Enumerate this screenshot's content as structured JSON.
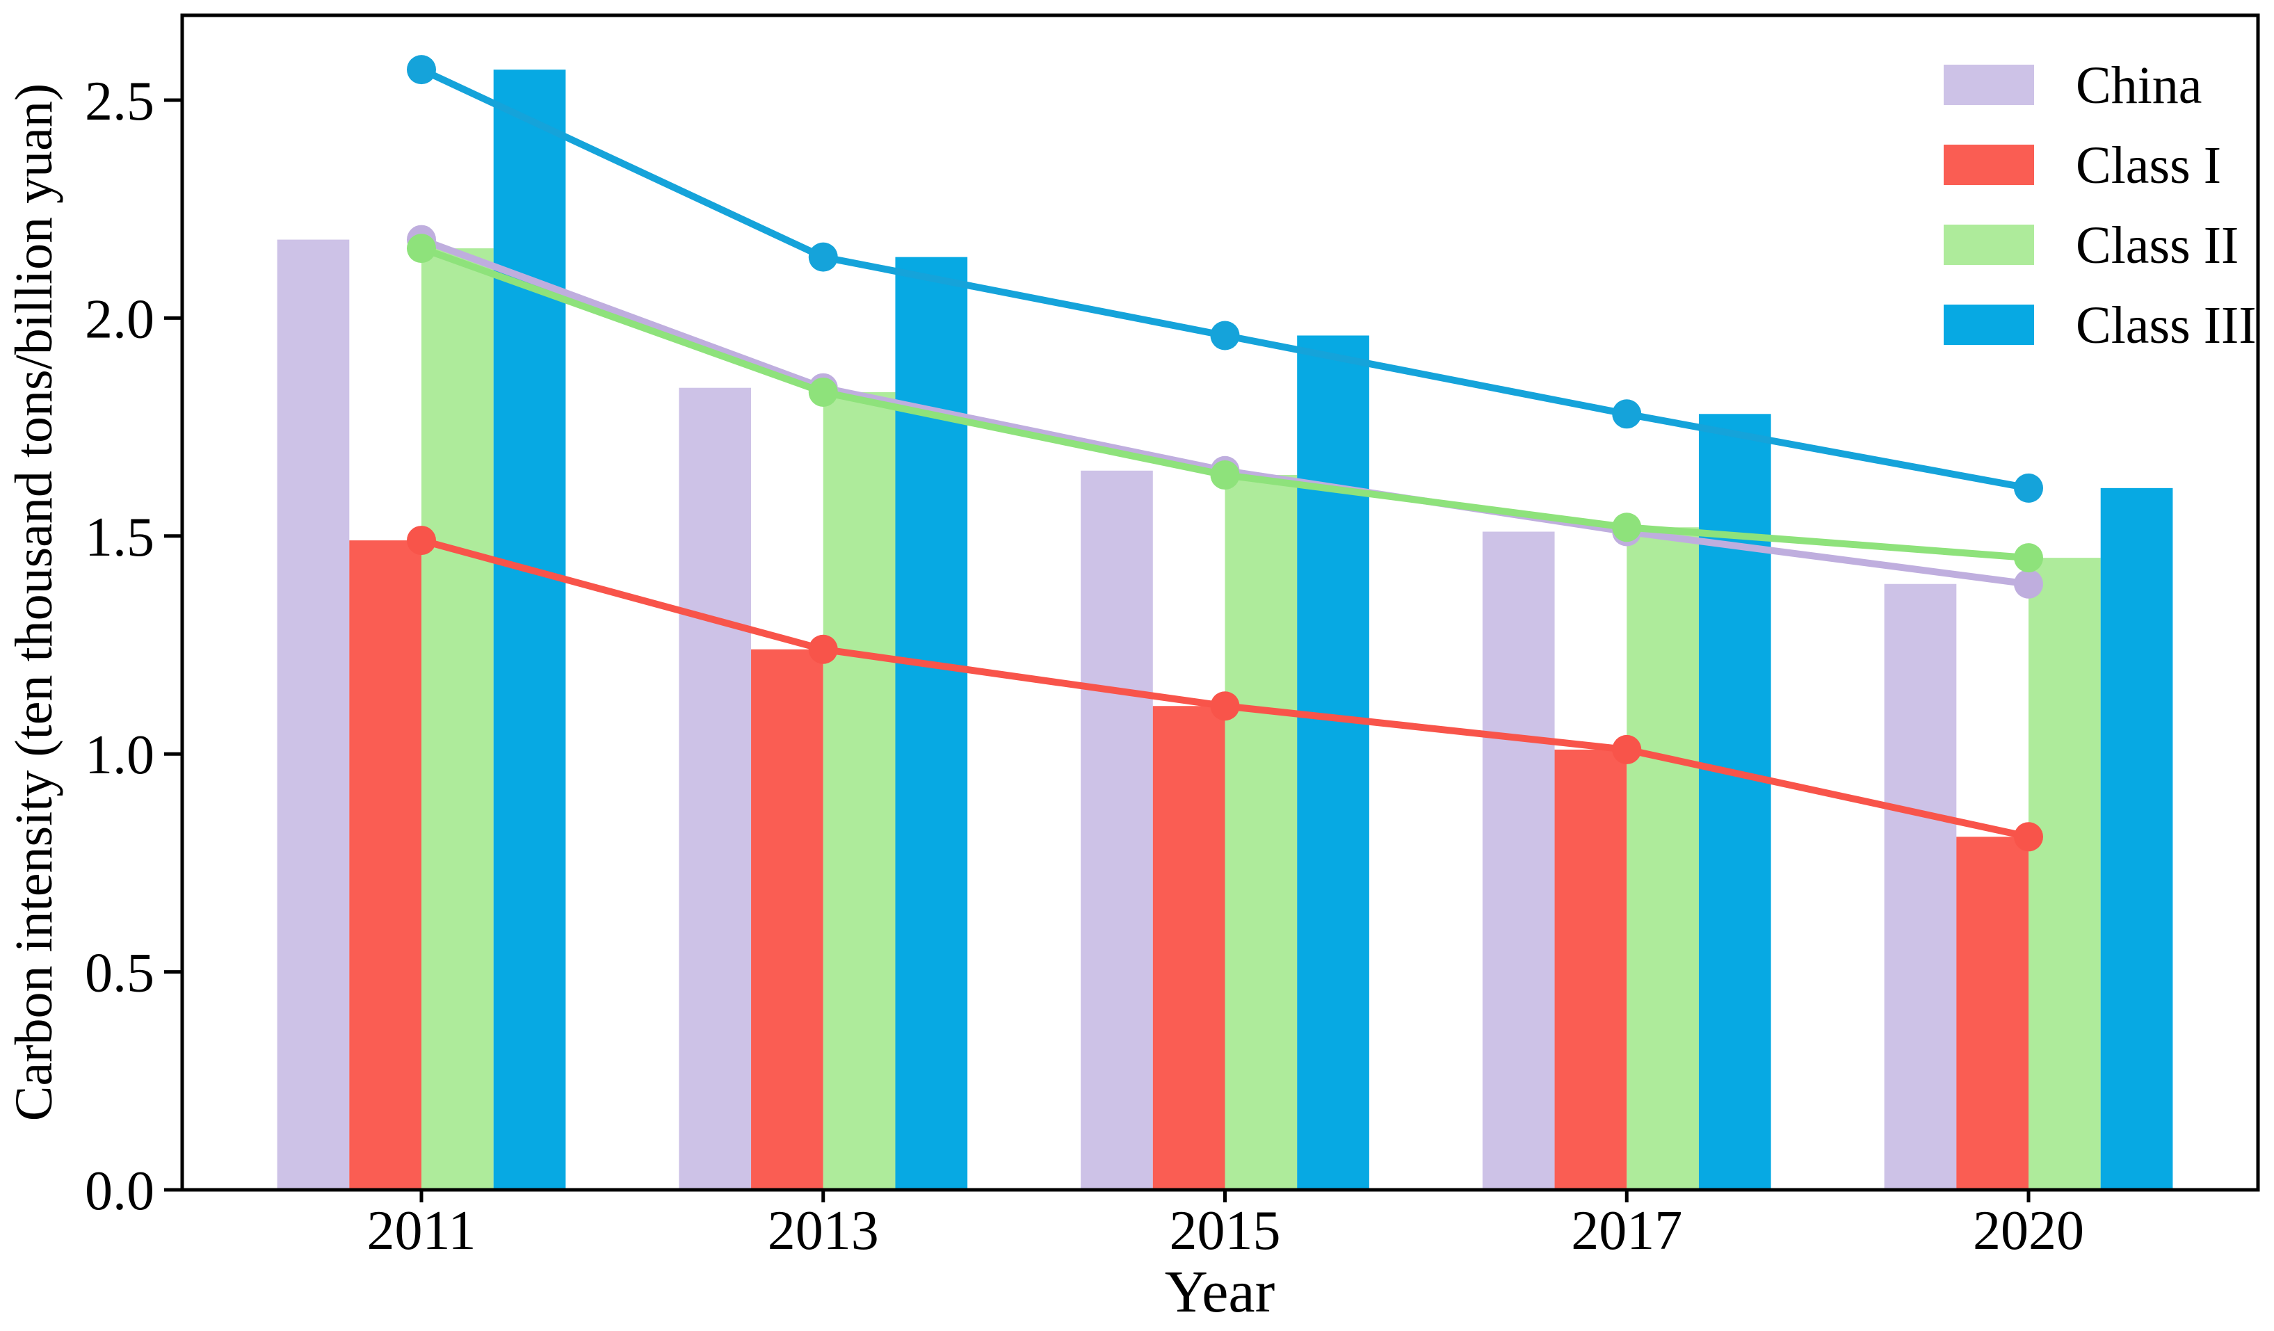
{
  "chart_data": {
    "type": "bar+line",
    "title": "",
    "xlabel": "Year",
    "ylabel": "Carbon intensity (ten thousand tons/billion yuan)",
    "categories": [
      "2011",
      "2013",
      "2015",
      "2017",
      "2020"
    ],
    "yticks": [
      0.0,
      0.5,
      1.0,
      1.5,
      2.0,
      2.5
    ],
    "ytick_labels": [
      "0.0",
      "0.5",
      "1.0",
      "1.5",
      "2.0",
      "2.5"
    ],
    "ylim": [
      0,
      2.7
    ],
    "grid": false,
    "legend_position": "top-right-inside",
    "marker": "circle",
    "axis_color": "#000000",
    "background_color": "#ffffff",
    "series": [
      {
        "name": "China",
        "bar_color": "#cdc2e7",
        "line_color": "#bfaede",
        "values": [
          2.18,
          1.84,
          1.65,
          1.51,
          1.39
        ]
      },
      {
        "name": "Class I",
        "bar_color": "#fa5d53",
        "line_color": "#f8544a",
        "values": [
          1.49,
          1.24,
          1.11,
          1.01,
          0.81
        ]
      },
      {
        "name": "Class II",
        "bar_color": "#aeeb9b",
        "line_color": "#8ee27b",
        "values": [
          2.16,
          1.83,
          1.64,
          1.52,
          1.45
        ]
      },
      {
        "name": "Class III",
        "bar_color": "#07a9e3",
        "line_color": "#15a3da",
        "values": [
          2.57,
          2.14,
          1.96,
          1.78,
          1.61
        ]
      }
    ]
  }
}
